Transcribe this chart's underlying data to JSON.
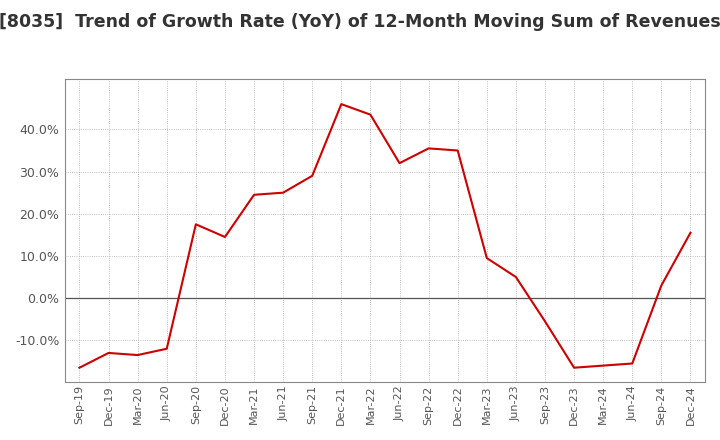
{
  "title": "[8035]  Trend of Growth Rate (YoY) of 12-Month Moving Sum of Revenues",
  "title_fontsize": 12.5,
  "line_color": "#cc0000",
  "background_color": "#ffffff",
  "plot_bg_color": "#ffffff",
  "grid_color": "#aaaaaa",
  "x_labels": [
    "Sep-19",
    "Dec-19",
    "Mar-20",
    "Jun-20",
    "Sep-20",
    "Dec-20",
    "Mar-21",
    "Jun-21",
    "Sep-21",
    "Dec-21",
    "Mar-22",
    "Jun-22",
    "Sep-22",
    "Dec-22",
    "Mar-23",
    "Jun-23",
    "Sep-23",
    "Dec-23",
    "Mar-24",
    "Jun-24",
    "Sep-24",
    "Dec-24"
  ],
  "y_values": [
    -16.5,
    -13.0,
    -13.5,
    -12.0,
    17.5,
    14.5,
    24.5,
    25.0,
    29.0,
    46.0,
    43.5,
    32.0,
    35.5,
    35.0,
    9.5,
    5.0,
    -5.5,
    -16.5,
    -16.0,
    -15.5,
    3.0,
    15.5
  ],
  "ylim": [
    -20,
    52
  ],
  "yticks": [
    -10.0,
    0.0,
    10.0,
    20.0,
    30.0,
    40.0
  ]
}
